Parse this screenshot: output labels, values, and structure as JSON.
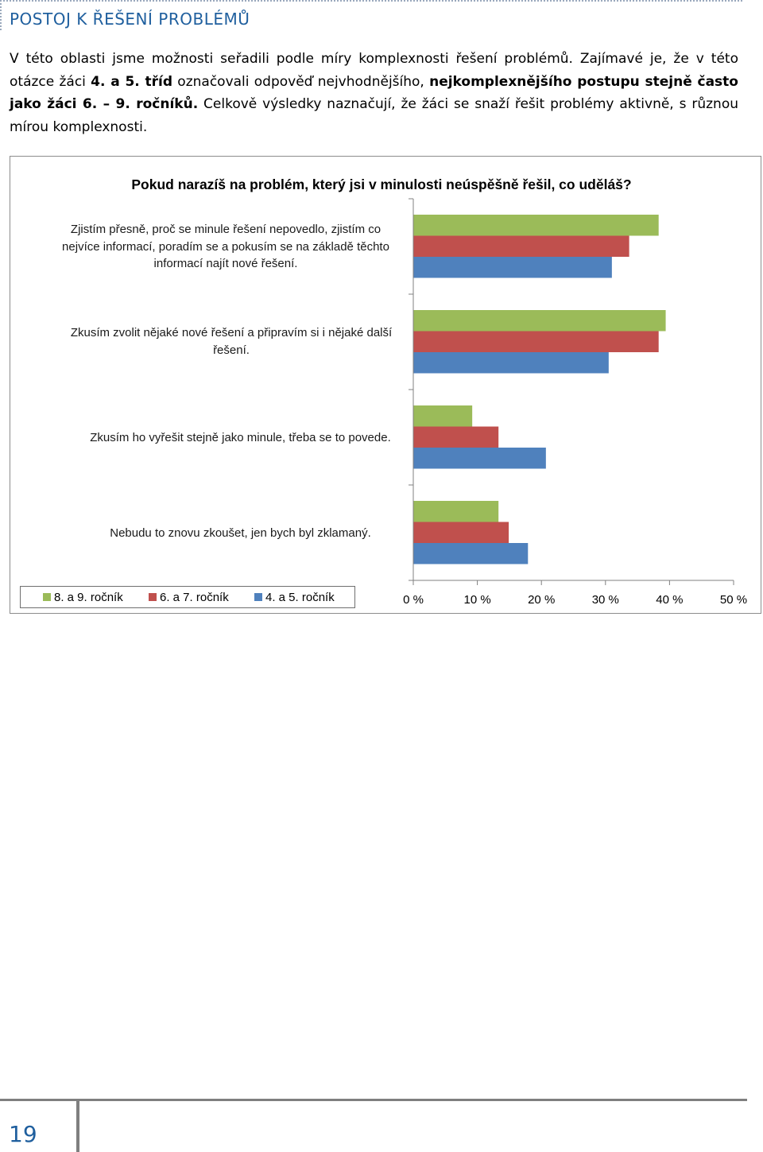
{
  "section_heading": "POSTOJ K ŘEŠENÍ PROBLÉMŮ",
  "intro": {
    "p1": "V této oblasti jsme možnosti seřadili podle míry komplexnosti řešení problémů. Zajímavé je, že v této otázce žáci ",
    "b1": "4. a 5. tříd",
    "p2": " označovali odpověď nejvhodnějšího, ",
    "b2": "nejkomplexnějšího postupu stejně často jako žáci 6. – 9. ročníků.",
    "p3": " Celkově výsledky naznačují, že žáci se snaží řešit problémy aktivně, s různou mírou komplexnosti."
  },
  "chart_data": {
    "type": "bar",
    "orientation": "horizontal",
    "title": "Pokud narazíš na problém, který jsi v minulosti neúspěšně řešil, co uděláš?",
    "categories": [
      "Zjistím přesně, proč se minule řešení nepovedlo, zjistím co nejvíce informací, poradím se a pokusím se na základě těchto informací najít nové řešení.",
      "Zkusím zvolit nějaké nové řešení a připravím si i nějaké další řešení.",
      "Zkusím ho vyřešit stejně jako minule, třeba se to povede.",
      "Nebudu to znovu zkoušet, jen bych byl zklamaný."
    ],
    "series": [
      {
        "name": "8. a 9. ročník",
        "color": "#9bbb59",
        "values": [
          38.3,
          39.4,
          9.2,
          13.3
        ]
      },
      {
        "name": "6. a 7. ročník",
        "color": "#c0504d",
        "values": [
          33.7,
          38.3,
          13.3,
          14.9
        ]
      },
      {
        "name": "4. a 5. ročník",
        "color": "#4f81bd",
        "values": [
          31.0,
          30.5,
          20.7,
          17.9
        ]
      }
    ],
    "xlim": [
      0,
      50
    ],
    "x_ticks": [
      "0 %",
      "10 %",
      "20 %",
      "30 %",
      "40 %",
      "50 %"
    ],
    "grid": false,
    "legend_position": "bottom-left"
  },
  "footer": {
    "page_number": "19"
  }
}
